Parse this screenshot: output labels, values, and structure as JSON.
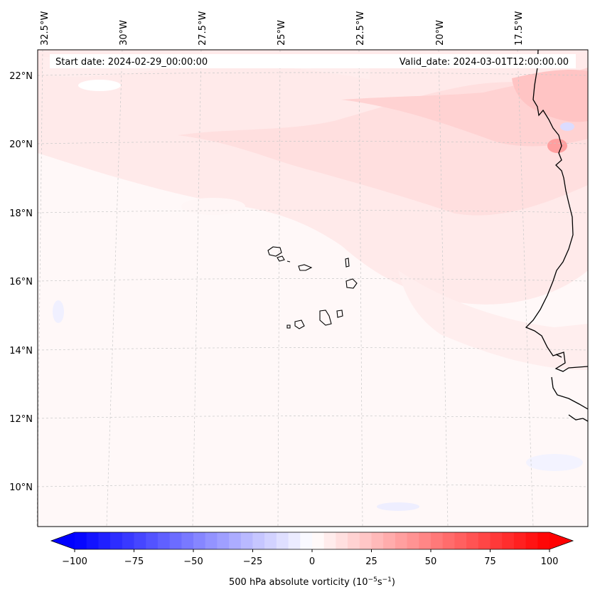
{
  "header": {
    "start_date": "Start date: 2024-02-29_00:00:00",
    "valid_date": "Valid_date: 2024-03-01T12:00:00.00"
  },
  "map": {
    "longitude_labels": [
      "32.5°W",
      "30°W",
      "27.5°W",
      "25°W",
      "22.5°W",
      "20°W",
      "17.5°W"
    ],
    "latitude_labels": [
      "22°N",
      "20°N",
      "18°N",
      "16°N",
      "14°N",
      "12°N",
      "10°N"
    ],
    "field": "500 hPa absolute vorticity"
  },
  "colorbar": {
    "ticks": [
      "−100",
      "−75",
      "−50",
      "−25",
      "0",
      "25",
      "50",
      "75",
      "100"
    ],
    "label_prefix": "500 hPa absolute vorticity (10",
    "label_exp1": "−5",
    "label_mid": "s",
    "label_exp2": "−1",
    "label_suffix": ")",
    "range": [
      -100,
      100
    ],
    "levels": 41,
    "colors": {
      "min": "#0000ff",
      "mid": "#ffffff",
      "max": "#ff0000"
    }
  }
}
